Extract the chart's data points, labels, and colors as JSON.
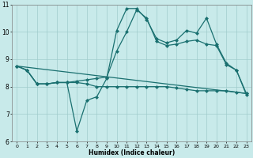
{
  "xlabel": "Humidex (Indice chaleur)",
  "xlim": [
    -0.5,
    23.5
  ],
  "ylim": [
    6,
    11
  ],
  "xticks": [
    0,
    1,
    2,
    3,
    4,
    5,
    6,
    7,
    8,
    9,
    10,
    11,
    12,
    13,
    14,
    15,
    16,
    17,
    18,
    19,
    20,
    21,
    22,
    23
  ],
  "yticks": [
    6,
    7,
    8,
    9,
    10,
    11
  ],
  "background_color": "#c8eaea",
  "grid_color": "#a0cccc",
  "line_color": "#1a7070",
  "line1_x": [
    0,
    1,
    2,
    3,
    4,
    5,
    6,
    7,
    8,
    9,
    10,
    11,
    12,
    13,
    14,
    15,
    16,
    17,
    18,
    19,
    20,
    21,
    22,
    23
  ],
  "line1_y": [
    8.75,
    8.6,
    8.1,
    8.1,
    8.15,
    8.15,
    6.38,
    7.5,
    7.63,
    8.3,
    10.05,
    10.85,
    10.85,
    10.45,
    9.75,
    9.6,
    9.7,
    10.05,
    9.95,
    10.5,
    9.55,
    8.85,
    8.6,
    7.75
  ],
  "line2_x": [
    0,
    1,
    2,
    3,
    4,
    5,
    6,
    7,
    8,
    9,
    10,
    11,
    12,
    13,
    14,
    15,
    16,
    17,
    18,
    19,
    20,
    21,
    22,
    23
  ],
  "line2_y": [
    8.75,
    8.6,
    8.1,
    8.1,
    8.15,
    8.15,
    8.2,
    8.25,
    8.3,
    8.35,
    9.3,
    10.0,
    10.8,
    10.5,
    9.65,
    9.5,
    9.55,
    9.65,
    9.7,
    9.55,
    9.5,
    8.8,
    8.6,
    7.7
  ],
  "line3_x": [
    0,
    1,
    2,
    3,
    4,
    5,
    6,
    7,
    8,
    9,
    10,
    11,
    12,
    13,
    14,
    15,
    16,
    17,
    18,
    19,
    20,
    21,
    22,
    23
  ],
  "line3_y": [
    8.75,
    8.6,
    8.1,
    8.1,
    8.15,
    8.15,
    8.15,
    8.1,
    8.0,
    8.0,
    8.0,
    8.0,
    8.0,
    8.0,
    8.0,
    8.0,
    7.95,
    7.9,
    7.85,
    7.85,
    7.85,
    7.85,
    7.8,
    7.75
  ],
  "line4_x": [
    0,
    23
  ],
  "line4_y": [
    8.75,
    7.75
  ]
}
